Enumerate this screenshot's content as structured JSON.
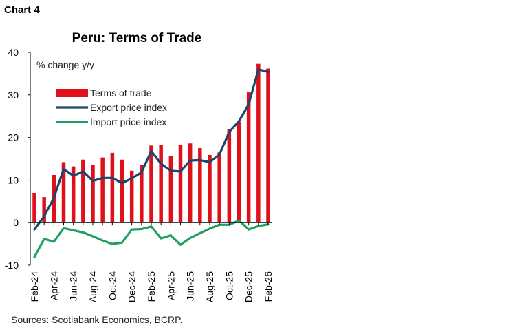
{
  "chart_label": "Chart 4",
  "source": "Sources: Scotiabank Economics, BCRP.",
  "colors": {
    "bar": "#e0101b",
    "export_line": "#18466f",
    "import_line": "#20a060"
  },
  "chart_data": {
    "type": "bar",
    "title": "Peru: Terms of Trade",
    "ylabel": "% change y/y",
    "ylim": [
      -10,
      40
    ],
    "yticks": [
      -10,
      0,
      10,
      20,
      30,
      40
    ],
    "grid": false,
    "legend_position": "top-left",
    "categories": [
      "Feb-24",
      "Mar-24",
      "Apr-24",
      "May-24",
      "Jun-24",
      "Jul-24",
      "Aug-24",
      "Sep-24",
      "Oct-24",
      "Nov-24",
      "Dec-24",
      "Jan-25",
      "Feb-25",
      "Mar-25",
      "Apr-25",
      "May-25",
      "Jun-25",
      "Jul-25",
      "Aug-25",
      "Sep-25",
      "Oct-25",
      "Nov-25",
      "Dec-25",
      "Jan-26",
      "Feb-26"
    ],
    "tick_labels": [
      "Feb-24",
      "Apr-24",
      "Jun-24",
      "Aug-24",
      "Oct-24",
      "Dec-24",
      "Feb-25",
      "Apr-25",
      "Jun-25",
      "Aug-25",
      "Oct-25",
      "Dec-25",
      "Feb-26"
    ],
    "series": [
      {
        "name": "Terms of trade",
        "kind": "bar",
        "values": [
          7.0,
          6.0,
          11.2,
          14.2,
          13.2,
          14.8,
          13.6,
          15.3,
          16.4,
          14.8,
          12.2,
          13.6,
          18.1,
          18.3,
          15.6,
          18.2,
          18.6,
          17.5,
          15.9,
          16.5,
          22.0,
          23.7,
          30.6,
          37.3,
          36.2
        ]
      },
      {
        "name": "Export price index",
        "kind": "line",
        "values": [
          -1.6,
          1.5,
          5.8,
          12.6,
          11.0,
          12.0,
          9.8,
          10.5,
          10.5,
          9.3,
          10.4,
          11.8,
          16.8,
          13.8,
          12.2,
          12.0,
          14.6,
          14.7,
          14.2,
          16.0,
          21.3,
          23.8,
          27.8,
          36.0,
          35.4
        ]
      },
      {
        "name": "Import price index",
        "kind": "line",
        "values": [
          -8.1,
          -3.8,
          -4.5,
          -1.3,
          -1.8,
          -2.3,
          -3.2,
          -4.2,
          -5.0,
          -4.7,
          -1.6,
          -1.5,
          -0.9,
          -3.7,
          -3.0,
          -5.2,
          -3.6,
          -2.5,
          -1.4,
          -0.5,
          -0.5,
          0.5,
          -1.6,
          -0.8,
          -0.4
        ]
      }
    ]
  }
}
